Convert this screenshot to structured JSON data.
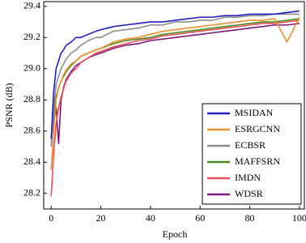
{
  "chart_data": {
    "type": "line",
    "xlabel": "Epoch",
    "ylabel": "PSNR (dB)",
    "x": [
      0,
      1,
      2,
      3,
      4,
      5,
      6,
      8,
      10,
      12,
      15,
      18,
      20,
      25,
      30,
      35,
      40,
      45,
      50,
      55,
      60,
      65,
      70,
      75,
      80,
      85,
      90,
      95,
      100
    ],
    "series": [
      {
        "name": "MSIDAN",
        "color": "#2020c0",
        "values": [
          28.55,
          28.85,
          29.0,
          29.05,
          29.1,
          29.12,
          29.15,
          29.17,
          29.2,
          29.2,
          29.22,
          29.24,
          29.25,
          29.27,
          29.28,
          29.29,
          29.3,
          29.3,
          29.31,
          29.32,
          29.33,
          29.33,
          29.34,
          29.34,
          29.35,
          29.35,
          29.35,
          29.36,
          29.37
        ]
      },
      {
        "name": "ESRGCNN",
        "color": "#f28e2b",
        "values": [
          28.35,
          28.6,
          28.8,
          28.88,
          28.92,
          28.96,
          28.99,
          29.03,
          29.05,
          29.08,
          29.1,
          29.12,
          29.13,
          29.17,
          29.19,
          29.2,
          29.22,
          29.24,
          29.25,
          29.26,
          29.27,
          29.28,
          29.29,
          29.3,
          29.31,
          29.31,
          29.32,
          29.17,
          29.33
        ]
      },
      {
        "name": "ECBSR",
        "color": "#8c8c8c",
        "values": [
          28.5,
          28.75,
          28.9,
          28.95,
          29.0,
          29.03,
          29.06,
          29.1,
          29.12,
          29.15,
          29.18,
          29.2,
          29.2,
          29.24,
          29.25,
          29.26,
          29.28,
          29.28,
          29.3,
          29.3,
          29.31,
          29.31,
          29.33,
          29.33,
          29.34,
          29.34,
          29.35,
          29.35,
          29.35
        ]
      },
      {
        "name": "MAFFSRN",
        "color": "#4a8c1c",
        "values": [
          28.55,
          28.7,
          28.82,
          28.88,
          28.92,
          28.95,
          28.98,
          29.02,
          29.05,
          29.08,
          29.1,
          29.12,
          29.13,
          29.16,
          29.18,
          29.19,
          29.2,
          29.22,
          29.23,
          29.24,
          29.25,
          29.26,
          29.27,
          29.28,
          29.29,
          29.3,
          29.3,
          29.31,
          29.32
        ]
      },
      {
        "name": "IMDN",
        "color": "#e8505b",
        "values": [
          28.18,
          28.45,
          28.65,
          28.75,
          28.82,
          28.87,
          28.92,
          28.97,
          29.0,
          29.04,
          29.07,
          29.1,
          29.11,
          29.14,
          29.16,
          29.18,
          29.19,
          29.21,
          29.22,
          29.23,
          29.24,
          29.25,
          29.26,
          29.27,
          29.28,
          29.29,
          29.29,
          29.3,
          29.31
        ]
      },
      {
        "name": "WDSR",
        "color": "#7b1a7b",
        "values": [
          28.55,
          28.65,
          28.75,
          28.52,
          28.8,
          28.88,
          28.93,
          28.98,
          29.02,
          29.04,
          29.07,
          29.09,
          29.1,
          29.13,
          29.15,
          29.16,
          29.18,
          29.19,
          29.2,
          29.21,
          29.22,
          29.23,
          29.24,
          29.25,
          29.26,
          29.27,
          29.28,
          29.28,
          29.29
        ]
      }
    ],
    "xlim": [
      -3,
      102
    ],
    "xticks": [
      0,
      20,
      40,
      60,
      80,
      100
    ],
    "ylim": [
      28.1,
      29.43
    ],
    "yticks": [
      28.2,
      28.4,
      28.6,
      28.8,
      {
        "value": 29,
        "label": "29.0"
      },
      29.2,
      29.4
    ],
    "legend": "lower right"
  }
}
